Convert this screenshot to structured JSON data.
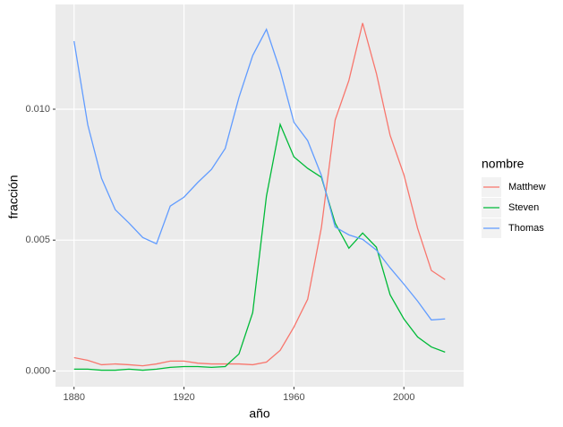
{
  "chart_data": {
    "type": "line",
    "x_label": "año",
    "y_label": "fracción",
    "legend_title": "nombre",
    "x": [
      1880,
      1885,
      1890,
      1895,
      1900,
      1905,
      1910,
      1915,
      1920,
      1925,
      1930,
      1935,
      1940,
      1945,
      1950,
      1955,
      1960,
      1965,
      1970,
      1975,
      1980,
      1985,
      1990,
      1995,
      2000,
      2005,
      2010,
      2015
    ],
    "series": [
      {
        "name": "Matthew",
        "color": "#f8766d",
        "values": [
          0.00051,
          0.00041,
          0.00024,
          0.00027,
          0.00024,
          0.0002,
          0.00027,
          0.00038,
          0.00038,
          0.0003,
          0.00027,
          0.00027,
          0.00027,
          0.00024,
          0.00034,
          0.00079,
          0.00168,
          0.00274,
          0.00548,
          0.00959,
          0.0111,
          0.01329,
          0.01137,
          0.009,
          0.0075,
          0.00545,
          0.00384,
          0.00349
        ]
      },
      {
        "name": "Steven",
        "color": "#00ba38",
        "values": [
          7e-05,
          7e-05,
          3e-05,
          3e-05,
          7e-05,
          3e-05,
          7e-05,
          0.00014,
          0.00017,
          0.00017,
          0.00014,
          0.00017,
          0.00065,
          0.00223,
          0.00668,
          0.00942,
          0.00818,
          0.00774,
          0.0074,
          0.00565,
          0.00469,
          0.00527,
          0.00473,
          0.00291,
          0.00199,
          0.0013,
          0.00092,
          0.00072
        ]
      },
      {
        "name": "Thomas",
        "color": "#619cff",
        "values": [
          0.0126,
          0.0094,
          0.00736,
          0.00616,
          0.00565,
          0.0051,
          0.00486,
          0.0063,
          0.00664,
          0.0072,
          0.0077,
          0.0085,
          0.01045,
          0.01205,
          0.01305,
          0.01147,
          0.0095,
          0.0088,
          0.00747,
          0.0055,
          0.0052,
          0.00503,
          0.00462,
          0.00394,
          0.00332,
          0.00267,
          0.00195,
          0.00199
        ]
      }
    ],
    "xlim": [
      1873.25,
      2021.75
    ],
    "xticks": [
      1880,
      1920,
      1960,
      2000
    ],
    "ylim": [
      -0.0006,
      0.014
    ],
    "yticks": [
      {
        "value": 0,
        "label": "0.000"
      },
      0.005,
      {
        "value": 0.01,
        "label": "0.010"
      }
    ],
    "grid": true
  }
}
